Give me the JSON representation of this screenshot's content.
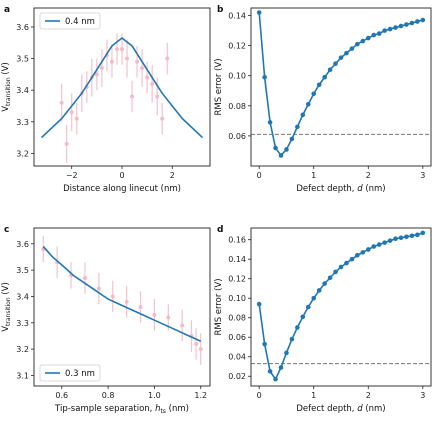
{
  "colors": {
    "line": "#1f77b4",
    "errorbar": "#f4c2cc",
    "marker": "#f2b8c4",
    "dashed": "#777777",
    "axes": "#222222"
  },
  "chart_data": [
    {
      "id": "a",
      "type": "line",
      "panel_label": "a",
      "xlabel": "Distance along linecut (nm)",
      "ylabel_main": "V",
      "ylabel_sub": "transition",
      "ylabel_unit": " (V)",
      "xlim": [
        -3.5,
        3.5
      ],
      "ylim": [
        3.16,
        3.66
      ],
      "xticks": [
        -2,
        0,
        2
      ],
      "yticks": [
        3.2,
        3.3,
        3.4,
        3.5,
        3.6
      ],
      "grid": false,
      "legend_position": "top-left",
      "series": [
        {
          "name": "0.4 nm",
          "kind": "line",
          "x": [
            -3.2,
            -2.8,
            -2.4,
            -2.0,
            -1.6,
            -1.2,
            -0.8,
            -0.4,
            0.0,
            0.4,
            0.8,
            1.2,
            1.6,
            2.0,
            2.4,
            2.8,
            3.2
          ],
          "y": [
            3.25,
            3.28,
            3.31,
            3.35,
            3.39,
            3.44,
            3.49,
            3.54,
            3.565,
            3.54,
            3.49,
            3.44,
            3.39,
            3.35,
            3.31,
            3.28,
            3.25
          ]
        },
        {
          "kind": "errorbar",
          "x": [
            -2.4,
            -2.2,
            -2.0,
            -1.8,
            -1.6,
            -1.4,
            -1.2,
            -1.0,
            -0.8,
            -0.6,
            -0.4,
            -0.2,
            0.0,
            0.2,
            0.4,
            0.6,
            0.8,
            1.0,
            1.2,
            1.4,
            1.6,
            1.8
          ],
          "y": [
            3.36,
            3.23,
            3.33,
            3.31,
            3.39,
            3.41,
            3.44,
            3.45,
            3.47,
            3.51,
            3.49,
            3.53,
            3.53,
            3.5,
            3.38,
            3.49,
            3.47,
            3.44,
            3.42,
            3.38,
            3.31,
            3.5
          ],
          "err": [
            0.06,
            0.06,
            0.06,
            0.05,
            0.06,
            0.05,
            0.06,
            0.05,
            0.06,
            0.05,
            0.05,
            0.05,
            0.05,
            0.06,
            0.05,
            0.05,
            0.06,
            0.05,
            0.06,
            0.06,
            0.05,
            0.05
          ]
        }
      ]
    },
    {
      "id": "b",
      "type": "line",
      "panel_label": "b",
      "xlabel_prefix": "Defect depth, ",
      "xlabel_var": "d",
      "xlabel_unit": " (nm)",
      "ylabel": "RMS error (V)",
      "xlim": [
        -0.15,
        3.15
      ],
      "ylim": [
        0.04,
        0.145
      ],
      "xticks": [
        0,
        1,
        2,
        3
      ],
      "yticks": [
        0.06,
        0.08,
        0.1,
        0.12,
        0.14
      ],
      "grid": false,
      "hline": 0.061,
      "series": [
        {
          "kind": "line-markers",
          "x": [
            0.0,
            0.1,
            0.2,
            0.3,
            0.4,
            0.5,
            0.6,
            0.7,
            0.8,
            0.9,
            1.0,
            1.1,
            1.2,
            1.3,
            1.4,
            1.5,
            1.6,
            1.7,
            1.8,
            1.9,
            2.0,
            2.1,
            2.2,
            2.3,
            2.4,
            2.5,
            2.6,
            2.7,
            2.8,
            2.9,
            3.0
          ],
          "y": [
            0.142,
            0.099,
            0.069,
            0.052,
            0.047,
            0.051,
            0.058,
            0.066,
            0.074,
            0.081,
            0.088,
            0.094,
            0.099,
            0.104,
            0.108,
            0.112,
            0.115,
            0.118,
            0.121,
            0.123,
            0.125,
            0.127,
            0.128,
            0.13,
            0.131,
            0.132,
            0.133,
            0.134,
            0.135,
            0.136,
            0.137
          ]
        }
      ]
    },
    {
      "id": "c",
      "type": "line",
      "panel_label": "c",
      "xlabel_prefix": "Tip-sample separation, ",
      "xlabel_var": "h",
      "xlabel_sub": "ts",
      "xlabel_unit": " (nm)",
      "ylabel_main": "V",
      "ylabel_sub": "transition",
      "ylabel_unit": " (V)",
      "xlim": [
        0.48,
        1.24
      ],
      "ylim": [
        3.06,
        3.66
      ],
      "xticks": [
        0.6,
        0.8,
        1.0,
        1.2
      ],
      "yticks": [
        3.1,
        3.2,
        3.3,
        3.4,
        3.5,
        3.6
      ],
      "grid": false,
      "legend_position": "bottom-left",
      "series": [
        {
          "name": "0.3 nm",
          "kind": "line",
          "x": [
            0.52,
            0.56,
            0.6,
            0.65,
            0.7,
            0.75,
            0.8,
            0.85,
            0.9,
            0.95,
            1.0,
            1.05,
            1.1,
            1.15,
            1.2
          ],
          "y": [
            3.59,
            3.55,
            3.52,
            3.48,
            3.45,
            3.42,
            3.39,
            3.37,
            3.35,
            3.33,
            3.31,
            3.29,
            3.27,
            3.25,
            3.23
          ]
        },
        {
          "kind": "errorbar",
          "x": [
            0.52,
            0.58,
            0.64,
            0.7,
            0.76,
            0.82,
            0.88,
            0.94,
            1.0,
            1.06,
            1.12,
            1.16,
            1.18,
            1.2
          ],
          "y": [
            3.58,
            3.53,
            3.48,
            3.47,
            3.43,
            3.4,
            3.38,
            3.36,
            3.33,
            3.32,
            3.29,
            3.25,
            3.22,
            3.2
          ],
          "err": [
            0.05,
            0.06,
            0.05,
            0.06,
            0.06,
            0.06,
            0.06,
            0.06,
            0.06,
            0.05,
            0.06,
            0.06,
            0.06,
            0.06
          ]
        }
      ]
    },
    {
      "id": "d",
      "type": "line",
      "panel_label": "d",
      "xlabel_prefix": "Defect depth, ",
      "xlabel_var": "d",
      "xlabel_unit": " (nm)",
      "ylabel": "RMS error (V)",
      "xlim": [
        -0.15,
        3.15
      ],
      "ylim": [
        0.01,
        0.172
      ],
      "xticks": [
        0,
        1,
        2,
        3
      ],
      "yticks": [
        0.02,
        0.04,
        0.06,
        0.08,
        0.1,
        0.12,
        0.14,
        0.16
      ],
      "grid": false,
      "hline": 0.033,
      "series": [
        {
          "kind": "line-markers",
          "x": [
            0.0,
            0.1,
            0.2,
            0.3,
            0.4,
            0.5,
            0.6,
            0.7,
            0.8,
            0.9,
            1.0,
            1.1,
            1.2,
            1.3,
            1.4,
            1.5,
            1.6,
            1.7,
            1.8,
            1.9,
            2.0,
            2.1,
            2.2,
            2.3,
            2.4,
            2.5,
            2.6,
            2.7,
            2.8,
            2.9,
            3.0
          ],
          "y": [
            0.094,
            0.053,
            0.025,
            0.017,
            0.029,
            0.044,
            0.058,
            0.07,
            0.081,
            0.091,
            0.1,
            0.108,
            0.115,
            0.121,
            0.127,
            0.132,
            0.136,
            0.14,
            0.144,
            0.147,
            0.15,
            0.153,
            0.155,
            0.157,
            0.159,
            0.161,
            0.162,
            0.163,
            0.164,
            0.165,
            0.167
          ]
        }
      ]
    }
  ]
}
